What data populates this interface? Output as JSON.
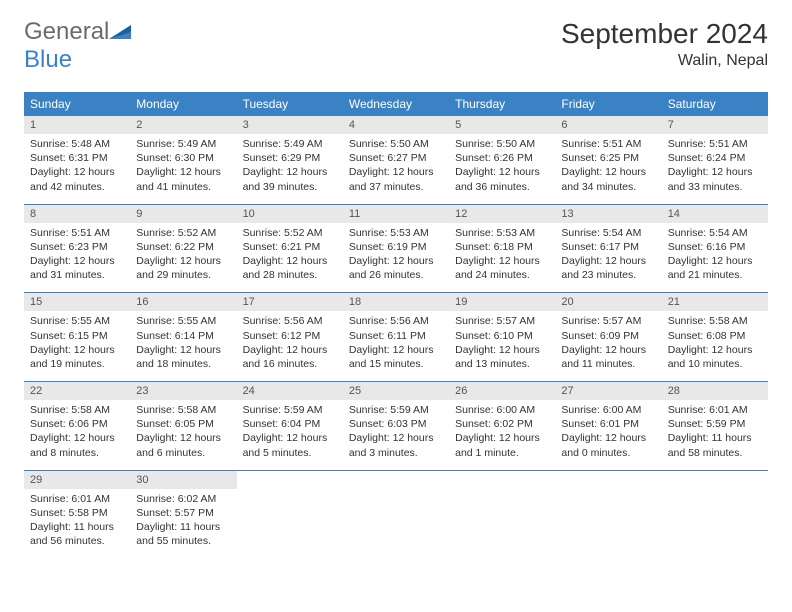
{
  "logo": {
    "part1": "General",
    "part2": "Blue"
  },
  "title": "September 2024",
  "location": "Walin, Nepal",
  "colors": {
    "header_bg": "#3b82c4",
    "header_text": "#ffffff",
    "date_bg": "#e8e8e8",
    "text": "#333333",
    "logo_gray": "#6b6b6b",
    "logo_blue": "#3b82c4"
  },
  "fonts": {
    "title_size": 28,
    "location_size": 16,
    "header_size": 12,
    "date_size": 11,
    "cell_size": 10.5
  },
  "day_labels": [
    "Sunday",
    "Monday",
    "Tuesday",
    "Wednesday",
    "Thursday",
    "Friday",
    "Saturday"
  ],
  "weeks": [
    {
      "dates": [
        "1",
        "2",
        "3",
        "4",
        "5",
        "6",
        "7"
      ],
      "cells": [
        {
          "sunrise": "Sunrise: 5:48 AM",
          "sunset": "Sunset: 6:31 PM",
          "daylight1": "Daylight: 12 hours",
          "daylight2": "and 42 minutes."
        },
        {
          "sunrise": "Sunrise: 5:49 AM",
          "sunset": "Sunset: 6:30 PM",
          "daylight1": "Daylight: 12 hours",
          "daylight2": "and 41 minutes."
        },
        {
          "sunrise": "Sunrise: 5:49 AM",
          "sunset": "Sunset: 6:29 PM",
          "daylight1": "Daylight: 12 hours",
          "daylight2": "and 39 minutes."
        },
        {
          "sunrise": "Sunrise: 5:50 AM",
          "sunset": "Sunset: 6:27 PM",
          "daylight1": "Daylight: 12 hours",
          "daylight2": "and 37 minutes."
        },
        {
          "sunrise": "Sunrise: 5:50 AM",
          "sunset": "Sunset: 6:26 PM",
          "daylight1": "Daylight: 12 hours",
          "daylight2": "and 36 minutes."
        },
        {
          "sunrise": "Sunrise: 5:51 AM",
          "sunset": "Sunset: 6:25 PM",
          "daylight1": "Daylight: 12 hours",
          "daylight2": "and 34 minutes."
        },
        {
          "sunrise": "Sunrise: 5:51 AM",
          "sunset": "Sunset: 6:24 PM",
          "daylight1": "Daylight: 12 hours",
          "daylight2": "and 33 minutes."
        }
      ]
    },
    {
      "dates": [
        "8",
        "9",
        "10",
        "11",
        "12",
        "13",
        "14"
      ],
      "cells": [
        {
          "sunrise": "Sunrise: 5:51 AM",
          "sunset": "Sunset: 6:23 PM",
          "daylight1": "Daylight: 12 hours",
          "daylight2": "and 31 minutes."
        },
        {
          "sunrise": "Sunrise: 5:52 AM",
          "sunset": "Sunset: 6:22 PM",
          "daylight1": "Daylight: 12 hours",
          "daylight2": "and 29 minutes."
        },
        {
          "sunrise": "Sunrise: 5:52 AM",
          "sunset": "Sunset: 6:21 PM",
          "daylight1": "Daylight: 12 hours",
          "daylight2": "and 28 minutes."
        },
        {
          "sunrise": "Sunrise: 5:53 AM",
          "sunset": "Sunset: 6:19 PM",
          "daylight1": "Daylight: 12 hours",
          "daylight2": "and 26 minutes."
        },
        {
          "sunrise": "Sunrise: 5:53 AM",
          "sunset": "Sunset: 6:18 PM",
          "daylight1": "Daylight: 12 hours",
          "daylight2": "and 24 minutes."
        },
        {
          "sunrise": "Sunrise: 5:54 AM",
          "sunset": "Sunset: 6:17 PM",
          "daylight1": "Daylight: 12 hours",
          "daylight2": "and 23 minutes."
        },
        {
          "sunrise": "Sunrise: 5:54 AM",
          "sunset": "Sunset: 6:16 PM",
          "daylight1": "Daylight: 12 hours",
          "daylight2": "and 21 minutes."
        }
      ]
    },
    {
      "dates": [
        "15",
        "16",
        "17",
        "18",
        "19",
        "20",
        "21"
      ],
      "cells": [
        {
          "sunrise": "Sunrise: 5:55 AM",
          "sunset": "Sunset: 6:15 PM",
          "daylight1": "Daylight: 12 hours",
          "daylight2": "and 19 minutes."
        },
        {
          "sunrise": "Sunrise: 5:55 AM",
          "sunset": "Sunset: 6:14 PM",
          "daylight1": "Daylight: 12 hours",
          "daylight2": "and 18 minutes."
        },
        {
          "sunrise": "Sunrise: 5:56 AM",
          "sunset": "Sunset: 6:12 PM",
          "daylight1": "Daylight: 12 hours",
          "daylight2": "and 16 minutes."
        },
        {
          "sunrise": "Sunrise: 5:56 AM",
          "sunset": "Sunset: 6:11 PM",
          "daylight1": "Daylight: 12 hours",
          "daylight2": "and 15 minutes."
        },
        {
          "sunrise": "Sunrise: 5:57 AM",
          "sunset": "Sunset: 6:10 PM",
          "daylight1": "Daylight: 12 hours",
          "daylight2": "and 13 minutes."
        },
        {
          "sunrise": "Sunrise: 5:57 AM",
          "sunset": "Sunset: 6:09 PM",
          "daylight1": "Daylight: 12 hours",
          "daylight2": "and 11 minutes."
        },
        {
          "sunrise": "Sunrise: 5:58 AM",
          "sunset": "Sunset: 6:08 PM",
          "daylight1": "Daylight: 12 hours",
          "daylight2": "and 10 minutes."
        }
      ]
    },
    {
      "dates": [
        "22",
        "23",
        "24",
        "25",
        "26",
        "27",
        "28"
      ],
      "cells": [
        {
          "sunrise": "Sunrise: 5:58 AM",
          "sunset": "Sunset: 6:06 PM",
          "daylight1": "Daylight: 12 hours",
          "daylight2": "and 8 minutes."
        },
        {
          "sunrise": "Sunrise: 5:58 AM",
          "sunset": "Sunset: 6:05 PM",
          "daylight1": "Daylight: 12 hours",
          "daylight2": "and 6 minutes."
        },
        {
          "sunrise": "Sunrise: 5:59 AM",
          "sunset": "Sunset: 6:04 PM",
          "daylight1": "Daylight: 12 hours",
          "daylight2": "and 5 minutes."
        },
        {
          "sunrise": "Sunrise: 5:59 AM",
          "sunset": "Sunset: 6:03 PM",
          "daylight1": "Daylight: 12 hours",
          "daylight2": "and 3 minutes."
        },
        {
          "sunrise": "Sunrise: 6:00 AM",
          "sunset": "Sunset: 6:02 PM",
          "daylight1": "Daylight: 12 hours",
          "daylight2": "and 1 minute."
        },
        {
          "sunrise": "Sunrise: 6:00 AM",
          "sunset": "Sunset: 6:01 PM",
          "daylight1": "Daylight: 12 hours",
          "daylight2": "and 0 minutes."
        },
        {
          "sunrise": "Sunrise: 6:01 AM",
          "sunset": "Sunset: 5:59 PM",
          "daylight1": "Daylight: 11 hours",
          "daylight2": "and 58 minutes."
        }
      ]
    },
    {
      "dates": [
        "29",
        "30",
        "",
        "",
        "",
        "",
        ""
      ],
      "cells": [
        {
          "sunrise": "Sunrise: 6:01 AM",
          "sunset": "Sunset: 5:58 PM",
          "daylight1": "Daylight: 11 hours",
          "daylight2": "and 56 minutes."
        },
        {
          "sunrise": "Sunrise: 6:02 AM",
          "sunset": "Sunset: 5:57 PM",
          "daylight1": "Daylight: 11 hours",
          "daylight2": "and 55 minutes."
        },
        null,
        null,
        null,
        null,
        null
      ]
    }
  ]
}
